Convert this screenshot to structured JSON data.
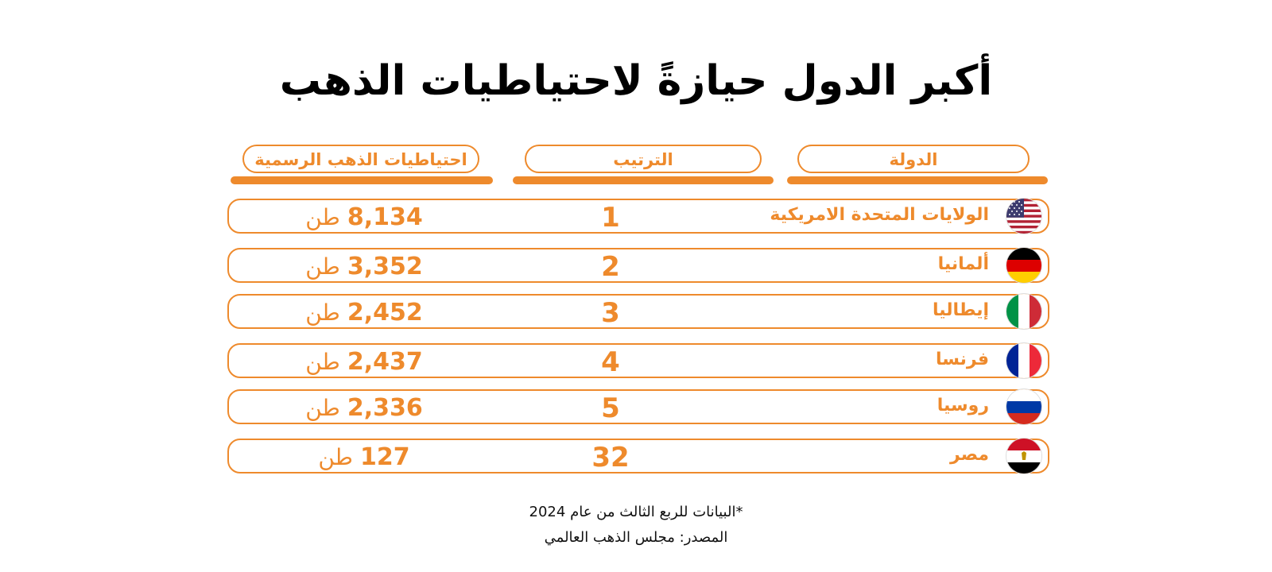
{
  "title": "أكبر الدول حيازةً لاحتياطيات الذهب",
  "columns": {
    "country": "الدولة",
    "rank": "الترتيب",
    "reserves": "احتياطيات الذهب الرسمية"
  },
  "unit": "طن",
  "rows": [
    {
      "country": "الولايات المتحدة الامريكية",
      "rank": "1",
      "reserves": "8,134",
      "flag": "usa-flag-icon"
    },
    {
      "country": "ألمانيا",
      "rank": "2",
      "reserves": "3,352",
      "flag": "germany-flag-icon"
    },
    {
      "country": "إيطاليا",
      "rank": "3",
      "reserves": "2,452",
      "flag": "italy-flag-icon"
    },
    {
      "country": "فرنسا",
      "rank": "4",
      "reserves": "2,437",
      "flag": "france-flag-icon"
    },
    {
      "country": "روسيا",
      "rank": "5",
      "reserves": "2,336",
      "flag": "russia-flag-icon"
    },
    {
      "country": "مصر",
      "rank": "32",
      "reserves": "127",
      "flag": "egypt-flag-icon"
    }
  ],
  "note": "*البيانات للربع الثالث من عام 2024",
  "source": "المصدر: مجلس الذهب العالمي",
  "colors": {
    "accent": "#ee8a2c",
    "text": "#000000"
  },
  "chart_data": {
    "type": "table",
    "title": "أكبر الدول حيازةً لاحتياطيات الذهب",
    "columns": [
      "الدولة",
      "الترتيب",
      "احتياطيات الذهب الرسمية"
    ],
    "unit": "طن",
    "categories": [
      "الولايات المتحدة الامريكية",
      "ألمانيا",
      "إيطاليا",
      "فرنسا",
      "روسيا",
      "مصر"
    ],
    "ranks": [
      1,
      2,
      3,
      4,
      5,
      32
    ],
    "values": [
      8134,
      3352,
      2452,
      2437,
      2336,
      127
    ]
  }
}
